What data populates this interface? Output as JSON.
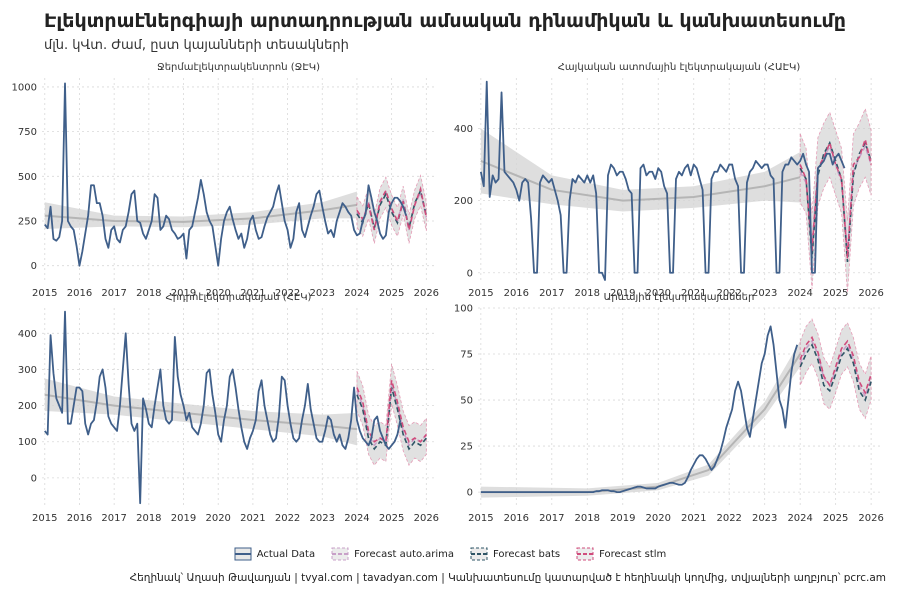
{
  "title": "Էլեկտրաէներգիայի արտադրության ամսական դինամիկան և կանխատեսումը",
  "subtitle": "մլն. կՎտ. Ժամ, ըստ կայանների տեսակների",
  "caption": "Հեղինակ՝ Աղասի Թավադյան   |   tvyal.com   |   tavadyan.com    |    Կանխատեսումը կատարված է հեղինակի կողմից, տվյալների աղբյուր՝ pcrc.am",
  "legend": [
    {
      "label": "Actual Data",
      "color": "#3f5f8a",
      "kind": "line"
    },
    {
      "label": "Forecast auto.arima",
      "color": "#c8a0c8",
      "kind": "dash"
    },
    {
      "label": "Forecast bats",
      "color": "#2e5566",
      "kind": "dash"
    },
    {
      "label": "Forecast stlm",
      "color": "#d04c7c",
      "kind": "dash"
    }
  ],
  "colors": {
    "actual": "#3f5f8a",
    "trend": "#b5b5b5",
    "band": "#d3d3d3",
    "arima": "#c8a0c8",
    "bats": "#2e5566",
    "stlm": "#d04c7c",
    "grid": "#d9d9d9"
  },
  "chart_data": [
    {
      "type": "line",
      "title": "Ջերմաէլեկտրակենտրոն (ՋԷԿ)",
      "x_ticks": [
        "2015",
        "2016",
        "2017",
        "2018",
        "2019",
        "2020",
        "2021",
        "2022",
        "2023",
        "2024",
        "2025",
        "2026"
      ],
      "ylim": [
        -80,
        1050
      ],
      "y_ticks": [
        0,
        250,
        500,
        750,
        1000
      ],
      "actual": {
        "start": "2015-01",
        "values": [
          230,
          210,
          330,
          150,
          140,
          160,
          250,
          1020,
          250,
          220,
          200,
          110,
          0,
          80,
          180,
          280,
          450,
          450,
          350,
          350,
          280,
          150,
          100,
          200,
          220,
          150,
          130,
          200,
          220,
          300,
          400,
          420,
          250,
          240,
          180,
          150,
          200,
          250,
          400,
          380,
          200,
          220,
          280,
          260,
          200,
          180,
          150,
          160,
          180,
          40,
          200,
          220,
          300,
          380,
          480,
          400,
          300,
          250,
          220,
          110,
          0,
          150,
          250,
          300,
          330,
          260,
          200,
          150,
          180,
          100,
          150,
          250,
          280,
          200,
          150,
          160,
          220,
          270,
          300,
          330,
          400,
          450,
          350,
          250,
          200,
          100,
          150,
          300,
          350,
          200,
          160,
          220,
          280,
          330,
          400,
          420,
          330,
          250,
          180,
          200,
          160,
          250,
          300,
          350,
          330,
          300,
          280,
          200,
          170,
          180,
          250,
          290,
          450,
          380,
          300,
          250,
          180,
          150,
          170,
          300,
          350,
          380,
          380,
          360,
          330,
          280
        ]
      },
      "trend": {
        "x": [
          "2015-01",
          "2017-01",
          "2019-01",
          "2021-01",
          "2023-01",
          "2024-01"
        ],
        "values": [
          280,
          250,
          245,
          265,
          310,
          340
        ],
        "band": [
          75,
          30,
          30,
          35,
          45,
          75
        ]
      },
      "forecast": {
        "x": [
          "2024-01",
          "2024-03",
          "2024-05",
          "2024-07",
          "2024-09",
          "2024-11",
          "2025-01",
          "2025-03",
          "2025-05",
          "2025-07",
          "2025-09",
          "2025-11",
          "2026-01"
        ],
        "arima": [
          300,
          250,
          360,
          200,
          350,
          410,
          300,
          250,
          370,
          200,
          340,
          410,
          270
        ],
        "bats": [
          290,
          240,
          350,
          210,
          340,
          400,
          300,
          240,
          360,
          210,
          350,
          420,
          280
        ],
        "stlm": [
          310,
          260,
          340,
          200,
          360,
          420,
          320,
          250,
          360,
          200,
          340,
          430,
          270
        ],
        "band_width": 75
      }
    },
    {
      "type": "line",
      "title": "Հայկական ատոմային էլեկտրակայան (ՀԱԷԿ)",
      "x_ticks": [
        "2015",
        "2016",
        "2017",
        "2018",
        "2019",
        "2020",
        "2021",
        "2022",
        "2023",
        "2024",
        "2025",
        "2026"
      ],
      "ylim": [
        -20,
        540
      ],
      "y_ticks": [
        0,
        200,
        400
      ],
      "actual": {
        "start": "2015-01",
        "values": [
          280,
          240,
          530,
          210,
          270,
          250,
          260,
          500,
          280,
          270,
          260,
          250,
          230,
          200,
          250,
          260,
          250,
          150,
          0,
          0,
          250,
          270,
          260,
          250,
          260,
          230,
          200,
          160,
          0,
          0,
          200,
          260,
          250,
          270,
          260,
          250,
          270,
          250,
          270,
          220,
          0,
          0,
          -20,
          270,
          300,
          290,
          270,
          280,
          280,
          260,
          230,
          220,
          0,
          0,
          290,
          300,
          270,
          280,
          280,
          260,
          290,
          280,
          240,
          220,
          0,
          0,
          260,
          280,
          270,
          290,
          300,
          270,
          300,
          290,
          260,
          230,
          0,
          0,
          260,
          280,
          280,
          300,
          290,
          280,
          300,
          300,
          260,
          240,
          0,
          0,
          250,
          280,
          290,
          310,
          300,
          290,
          300,
          300,
          270,
          260,
          0,
          0,
          280,
          300,
          300,
          320,
          310,
          300,
          310,
          330,
          300,
          280,
          0,
          0,
          290,
          300,
          310,
          330,
          330,
          300,
          320,
          330,
          310,
          290
        ]
      },
      "trend": {
        "x": [
          "2015-01",
          "2017-01",
          "2019-01",
          "2021-01",
          "2023-01",
          "2024-01"
        ],
        "values": [
          310,
          230,
          200,
          210,
          240,
          265
        ],
        "band": [
          90,
          40,
          30,
          30,
          40,
          70
        ]
      },
      "forecast": {
        "x": [
          "2024-01",
          "2024-03",
          "2024-05",
          "2024-07",
          "2024-09",
          "2024-11",
          "2025-01",
          "2025-03",
          "2025-05",
          "2025-07",
          "2025-09",
          "2025-11",
          "2026-01"
        ],
        "arima": [
          280,
          250,
          80,
          280,
          320,
          350,
          300,
          250,
          60,
          280,
          320,
          350,
          300
        ],
        "bats": [
          290,
          260,
          40,
          270,
          330,
          360,
          310,
          260,
          30,
          270,
          330,
          360,
          310
        ],
        "stlm": [
          300,
          260,
          60,
          290,
          320,
          360,
          300,
          260,
          40,
          300,
          320,
          370,
          300
        ],
        "band_width": 85
      }
    },
    {
      "type": "line",
      "title": "Հիդրոէլեկտրակայան (ՀԷԿ)",
      "x_ticks": [
        "2015",
        "2016",
        "2017",
        "2018",
        "2019",
        "2020",
        "2021",
        "2022",
        "2023",
        "2024",
        "2025",
        "2026"
      ],
      "ylim": [
        -75,
        470
      ],
      "y_ticks": [
        0,
        100,
        200,
        300,
        400
      ],
      "actual": {
        "start": "2015-01",
        "values": [
          130,
          120,
          395,
          290,
          220,
          200,
          180,
          460,
          150,
          150,
          200,
          250,
          250,
          240,
          150,
          120,
          150,
          160,
          210,
          280,
          300,
          250,
          170,
          150,
          140,
          130,
          200,
          300,
          400,
          260,
          150,
          130,
          150,
          -70,
          220,
          190,
          150,
          140,
          200,
          250,
          300,
          200,
          160,
          150,
          160,
          390,
          280,
          230,
          200,
          160,
          180,
          140,
          130,
          120,
          150,
          200,
          290,
          300,
          230,
          180,
          120,
          100,
          160,
          200,
          280,
          300,
          250,
          190,
          140,
          100,
          80,
          110,
          130,
          160,
          240,
          270,
          200,
          160,
          120,
          100,
          110,
          170,
          280,
          270,
          200,
          150,
          110,
          100,
          110,
          160,
          200,
          260,
          190,
          150,
          110,
          100,
          100,
          130,
          170,
          160,
          120,
          100,
          120,
          90,
          80,
          110,
          160,
          250,
          160,
          130,
          110,
          100,
          90,
          110,
          160,
          170,
          130,
          110,
          90,
          80,
          90,
          100,
          120,
          160
        ]
      },
      "trend": {
        "x": [
          "2015-01",
          "2017-01",
          "2019-01",
          "2021-01",
          "2023-01",
          "2024-01"
        ],
        "values": [
          230,
          200,
          180,
          160,
          145,
          135
        ],
        "band": [
          45,
          25,
          25,
          25,
          30,
          45
        ]
      },
      "forecast": {
        "x": [
          "2024-01",
          "2024-03",
          "2024-05",
          "2024-07",
          "2024-09",
          "2024-11",
          "2025-01",
          "2025-03",
          "2025-05",
          "2025-07",
          "2025-09",
          "2025-11",
          "2026-01"
        ],
        "arima": [
          240,
          200,
          120,
          90,
          110,
          100,
          260,
          200,
          130,
          90,
          110,
          100,
          120
        ],
        "bats": [
          230,
          190,
          110,
          80,
          100,
          90,
          250,
          190,
          120,
          80,
          100,
          90,
          110
        ],
        "stlm": [
          250,
          210,
          130,
          100,
          110,
          100,
          270,
          210,
          140,
          100,
          110,
          100,
          120
        ],
        "band_width": 45
      }
    },
    {
      "type": "line",
      "title": "Արևային էլեկտրակայաններ",
      "x_ticks": [
        "2015",
        "2016",
        "2017",
        "2018",
        "2019",
        "2020",
        "2021",
        "2022",
        "2023",
        "2024",
        "2025",
        "2026"
      ],
      "ylim": [
        -7,
        100
      ],
      "y_ticks": [
        0,
        25,
        50,
        75,
        100
      ],
      "actual": {
        "start": "2015-01",
        "values": [
          0,
          0,
          0,
          0,
          0,
          0,
          0,
          0,
          0,
          0,
          0,
          0,
          0,
          0,
          0,
          0,
          0,
          0,
          0,
          0,
          0,
          0,
          0,
          0,
          0,
          0,
          0,
          0,
          0,
          0,
          0,
          0,
          0,
          0,
          0,
          0,
          0,
          0,
          0,
          0.5,
          0.5,
          1,
          1,
          1,
          0.5,
          0.5,
          0,
          0,
          0.5,
          1,
          1.5,
          2,
          2.5,
          3,
          3,
          2.5,
          2,
          2,
          2,
          2,
          3,
          3.5,
          4,
          4.5,
          5,
          5,
          4.5,
          4,
          4,
          5,
          8,
          12,
          15,
          18,
          20,
          20,
          18,
          15,
          12,
          14,
          18,
          22,
          28,
          35,
          40,
          45,
          55,
          60,
          55,
          45,
          35,
          30,
          40,
          50,
          60,
          70,
          75,
          85,
          90,
          80,
          65,
          50,
          45,
          35,
          50,
          65,
          75,
          80
        ]
      },
      "trend": {
        "x": [
          "2015-01",
          "2018-01",
          "2020-01",
          "2021-06",
          "2023-01",
          "2024-01"
        ],
        "values": [
          0,
          0,
          3,
          12,
          45,
          75
        ],
        "band": [
          3,
          2,
          2,
          3,
          4,
          7
        ]
      },
      "forecast": {
        "x": [
          "2024-01",
          "2024-03",
          "2024-05",
          "2024-07",
          "2024-09",
          "2024-11",
          "2025-01",
          "2025-03",
          "2025-05",
          "2025-07",
          "2025-09",
          "2025-11",
          "2026-01"
        ],
        "arima": [
          70,
          78,
          82,
          75,
          62,
          58,
          66,
          76,
          80,
          72,
          58,
          52,
          62
        ],
        "bats": [
          68,
          75,
          80,
          72,
          58,
          55,
          64,
          74,
          78,
          70,
          55,
          50,
          60
        ],
        "stlm": [
          72,
          80,
          84,
          76,
          63,
          58,
          68,
          78,
          82,
          74,
          60,
          54,
          64
        ],
        "band_width": 10
      }
    }
  ]
}
